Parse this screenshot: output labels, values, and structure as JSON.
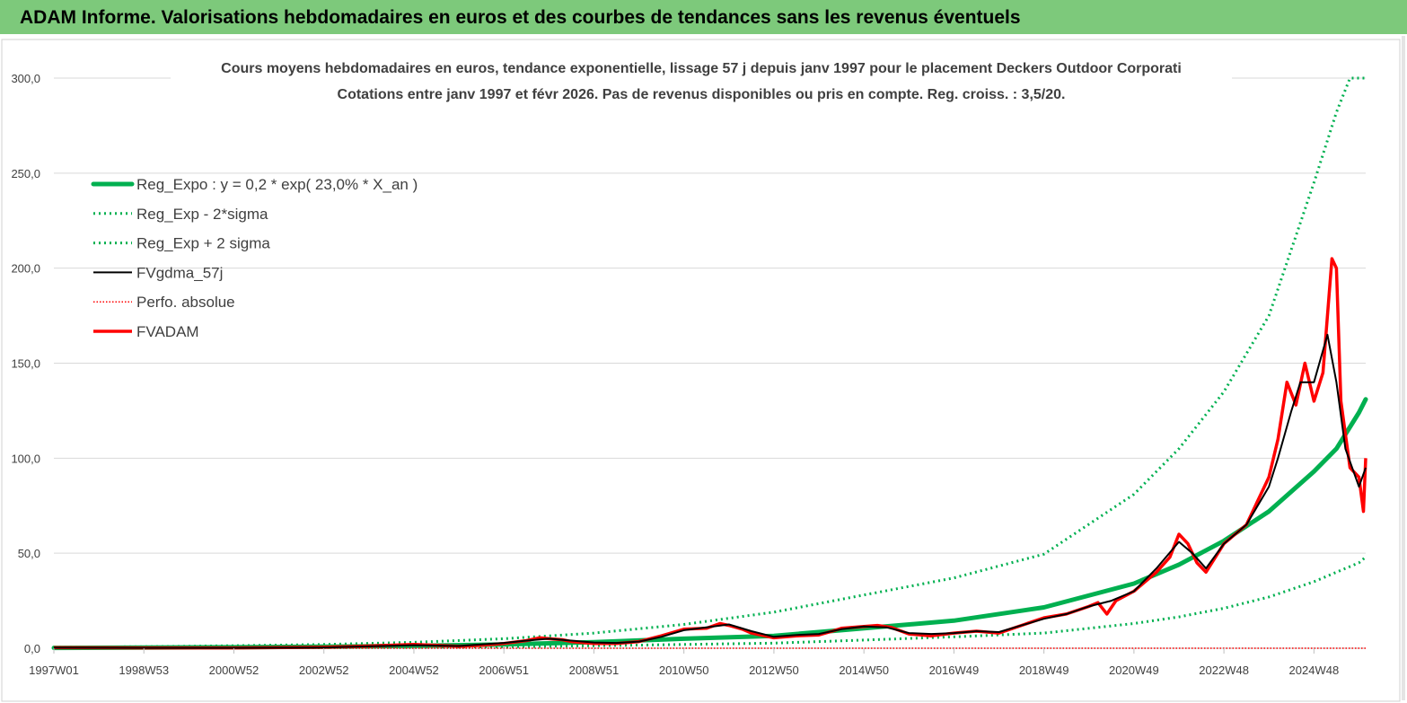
{
  "header": {
    "title": "ADAM Informe. Valorisations hebdomadaires en euros et des courbes de tendances sans les revenus éventuels"
  },
  "colors": {
    "header_bg": "#7dc97b",
    "green": "#00b050",
    "red": "#ff0000",
    "black": "#000000",
    "grid": "#d9d9d9"
  },
  "chart_data": {
    "type": "line",
    "title": "Cours moyens hebdomadaires en euros, tendance exponentielle, lissage 57 j depuis janv 1997  pour le placement Deckers Outdoor Corporati",
    "subtitle": "Cotations entre janv 1997 et févr  2026. Pas de revenus disponibles ou pris en  compte. Reg.  croiss. : 3,5/20.",
    "xlabel": "",
    "ylabel": "",
    "ylim": [
      0,
      300
    ],
    "xlim": [
      0,
      29.15
    ],
    "yticks": [
      {
        "value": 0,
        "label": "0,0"
      },
      {
        "value": 50,
        "label": "50,0"
      },
      {
        "value": 100,
        "label": "100,0"
      },
      {
        "value": 150,
        "label": "150,0"
      },
      {
        "value": 200,
        "label": "200,0"
      },
      {
        "value": 250,
        "label": "250,0"
      },
      {
        "value": 300,
        "label": "300,0"
      }
    ],
    "xticks": [
      {
        "value": 0,
        "label": "1997W01"
      },
      {
        "value": 2,
        "label": "1998W53"
      },
      {
        "value": 4,
        "label": "2000W52"
      },
      {
        "value": 6,
        "label": "2002W52"
      },
      {
        "value": 8,
        "label": "2004W52"
      },
      {
        "value": 10,
        "label": "2006W51"
      },
      {
        "value": 12,
        "label": "2008W51"
      },
      {
        "value": 14,
        "label": "2010W50"
      },
      {
        "value": 16,
        "label": "2012W50"
      },
      {
        "value": 18,
        "label": "2014W50"
      },
      {
        "value": 20,
        "label": "2016W49"
      },
      {
        "value": 22,
        "label": "2018W49"
      },
      {
        "value": 24,
        "label": "2020W49"
      },
      {
        "value": 26,
        "label": "2022W48"
      },
      {
        "value": 28,
        "label": "2024W48"
      }
    ],
    "legend_position": "top-left",
    "series": [
      {
        "name": "Reg_Expo : y = 0,2 * exp( 23,0% *  X_an )",
        "style": "green-thick",
        "x": [
          0,
          2,
          4,
          6,
          8,
          10,
          12,
          14,
          16,
          18,
          20,
          22,
          24,
          25,
          26,
          27,
          28,
          28.5,
          29,
          29.15
        ],
        "values": [
          0.2,
          0.32,
          0.5,
          0.79,
          1.26,
          2.0,
          3.2,
          5.0,
          6.5,
          10.5,
          14.5,
          21.5,
          34.0,
          44.0,
          56.5,
          72.0,
          93.0,
          105.0,
          124.0,
          131.0
        ]
      },
      {
        "name": "Reg_Exp - 2*sigma",
        "style": "green-dotted",
        "x": [
          0,
          2,
          4,
          6,
          8,
          10,
          12,
          14,
          16,
          18,
          20,
          22,
          24,
          25,
          26,
          27,
          28,
          28.5,
          29,
          29.15
        ],
        "values": [
          0.08,
          0.13,
          0.2,
          0.32,
          0.5,
          0.8,
          1.3,
          2.0,
          2.7,
          4.3,
          6.0,
          8.0,
          13.0,
          16.5,
          21.0,
          27.0,
          35.0,
          40.0,
          45.0,
          48.0
        ]
      },
      {
        "name": "Reg_Exp + 2 sigma",
        "style": "green-dotted",
        "x": [
          0,
          2,
          4,
          6,
          8,
          10,
          12,
          14,
          16,
          18,
          20,
          22,
          24,
          25,
          26,
          27,
          28,
          28.5,
          28.8,
          29.15
        ],
        "values": [
          0.5,
          0.8,
          1.3,
          2.0,
          3.1,
          5.0,
          8.0,
          12.5,
          19.0,
          28.0,
          37.0,
          49.5,
          81.0,
          105.0,
          135.0,
          175.0,
          245.0,
          282.0,
          300.0,
          300.0
        ]
      },
      {
        "name": "FVgdma_57j",
        "style": "black",
        "x": [
          0,
          2,
          4,
          6,
          7,
          8,
          9,
          9.5,
          10,
          10.5,
          11,
          11.5,
          12,
          12.5,
          13,
          13.5,
          14,
          14.5,
          15,
          15.5,
          16,
          16.5,
          17,
          17.5,
          18,
          18.5,
          19,
          19.5,
          20,
          20.5,
          21,
          21.5,
          22,
          22.5,
          23,
          23.5,
          24,
          24.5,
          25,
          25.3,
          25.6,
          26,
          26.5,
          27,
          27.2,
          27.5,
          27.7,
          28,
          28.3,
          28.5,
          28.7,
          29,
          29.15
        ],
        "values": [
          0.3,
          0.2,
          0.2,
          0.4,
          1.0,
          1.6,
          1.2,
          2.0,
          2.8,
          4.0,
          5.0,
          4.0,
          3.0,
          2.8,
          3.5,
          6.0,
          9.5,
          11.0,
          12.5,
          9.0,
          6.0,
          7.0,
          7.5,
          10.0,
          11.5,
          11.0,
          8.0,
          7.5,
          8.0,
          9.0,
          8.5,
          12.0,
          15.5,
          18.0,
          22.0,
          25.0,
          30.0,
          42.0,
          56.0,
          50.0,
          42.0,
          55.0,
          65.0,
          85.0,
          100.0,
          125.0,
          140.0,
          140.0,
          165.0,
          140.0,
          105.0,
          85.0,
          95.0
        ]
      },
      {
        "name": "Perfo. absolue",
        "style": "red-dotted",
        "x": [
          0,
          29.15
        ],
        "values": [
          0,
          0
        ]
      },
      {
        "name": "FVADAM",
        "style": "red-thick",
        "x": [
          0,
          2,
          4,
          6,
          7,
          8,
          8.5,
          9,
          9.5,
          10,
          10.5,
          10.8,
          11,
          11.3,
          11.5,
          12,
          12.5,
          13,
          13.5,
          14,
          14.5,
          14.8,
          15,
          15.3,
          15.5,
          16,
          16.5,
          17,
          17.3,
          17.5,
          18,
          18.3,
          18.6,
          19,
          19.5,
          20,
          20.5,
          21,
          21.5,
          22,
          22.5,
          23,
          23.2,
          23.4,
          23.6,
          24,
          24.5,
          24.8,
          25,
          25.2,
          25.4,
          25.6,
          26,
          26.5,
          27,
          27.2,
          27.4,
          27.6,
          27.8,
          28,
          28.2,
          28.4,
          28.5,
          28.6,
          28.8,
          29,
          29.1,
          29.15
        ],
        "values": [
          0.3,
          0.2,
          0.2,
          0.5,
          1.2,
          2.0,
          1.5,
          1.0,
          1.5,
          2.5,
          4.0,
          5.5,
          5.0,
          4.5,
          3.5,
          2.5,
          2.5,
          3.5,
          6.5,
          10.0,
          10.5,
          13.0,
          12.0,
          10.0,
          8.0,
          5.5,
          6.5,
          7.0,
          9.0,
          10.5,
          11.5,
          12.0,
          11.0,
          7.5,
          6.5,
          8.0,
          9.0,
          8.0,
          12.0,
          16.0,
          18.0,
          22.0,
          24.0,
          18.0,
          25.0,
          30.0,
          40.0,
          48.0,
          60.0,
          55.0,
          45.0,
          40.0,
          55.0,
          65.0,
          90.0,
          110.0,
          140.0,
          128.0,
          150.0,
          130.0,
          145.0,
          205.0,
          200.0,
          130.0,
          95.0,
          90.0,
          72.0,
          100.0
        ]
      }
    ]
  }
}
